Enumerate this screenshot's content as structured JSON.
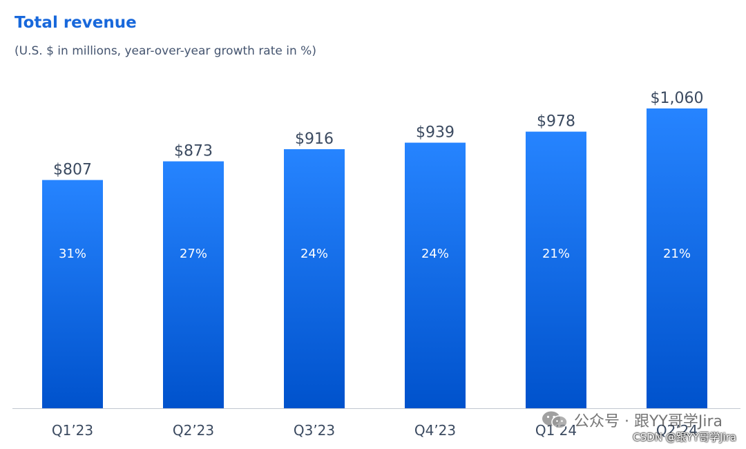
{
  "chart_data": {
    "type": "bar",
    "title": "Total revenue",
    "subtitle": "(U.S. $ in millions, year-over-year growth rate in %)",
    "categories": [
      "Q1’23",
      "Q2’23",
      "Q3’23",
      "Q4’23",
      "Q1’24",
      "Q2’24"
    ],
    "values": [
      807,
      873,
      916,
      939,
      978,
      1060
    ],
    "value_labels": [
      "$807",
      "$873",
      "$916",
      "$939",
      "$978",
      "$1,060"
    ],
    "growth_labels": [
      "31%",
      "27%",
      "24%",
      "24%",
      "21%",
      "21%"
    ],
    "xlabel": "",
    "ylabel": "",
    "ylim": [
      0,
      1060
    ],
    "grid": false,
    "legend": "none",
    "colors": {
      "bar_top": "#2684ff",
      "bar_bottom": "#0052cc",
      "title": "#1868db",
      "text": "#3b4a60",
      "axis": "#c1c7d0"
    }
  },
  "watermark": {
    "text": "公众号 · 跟YY哥学Jira",
    "icon": "wechat-icon"
  },
  "credit": "CSDN @跟YY哥学Jira"
}
